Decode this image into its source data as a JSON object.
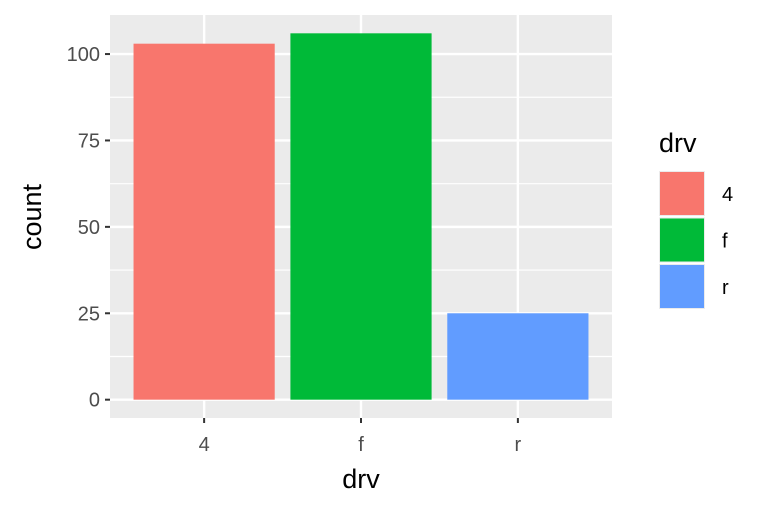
{
  "chart_data": {
    "type": "bar",
    "categories": [
      "4",
      "f",
      "r"
    ],
    "values": [
      103,
      106,
      25
    ],
    "colors": [
      "#F8766D",
      "#00BA38",
      "#619CFF"
    ],
    "xlabel": "drv",
    "ylabel": "count",
    "yticks": [
      0,
      25,
      50,
      75,
      100
    ],
    "ytick_labels": [
      "0",
      "25",
      "50",
      "75",
      "100"
    ],
    "ylim": [
      -5.3,
      111.3
    ],
    "grid": true,
    "panel_background": "#EBEBEB",
    "legend": {
      "title": "drv",
      "position": "right",
      "entries": [
        "4",
        "f",
        "r"
      ]
    }
  }
}
